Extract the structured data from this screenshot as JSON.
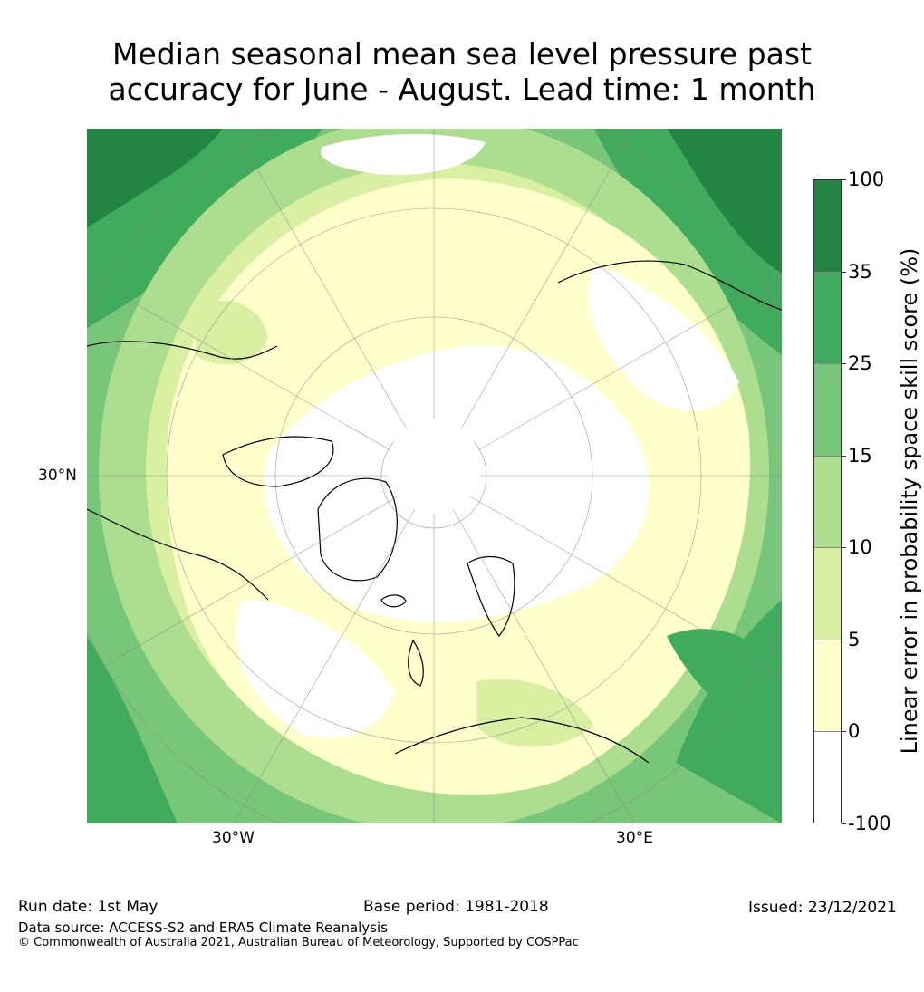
{
  "title_line1": "Median seasonal mean sea level pressure past",
  "title_line2": "accuracy for June - August. Lead time: 1 month",
  "map": {
    "lat_label": "30°N",
    "lon_left_label": "30°W",
    "lon_right_label": "30°E",
    "projection": "north-polar-stereographic",
    "land_outline_color": "#000000"
  },
  "colorbar": {
    "title": "Linear error in probability space skill score (%)",
    "tick_labels": [
      "100",
      "35",
      "25",
      "15",
      "10",
      "5",
      "0",
      "-100"
    ],
    "bins": [
      {
        "range": "35 to 100",
        "color": "#238443"
      },
      {
        "range": "25 to 35",
        "color": "#41ab5d"
      },
      {
        "range": "15 to 25",
        "color": "#78c679"
      },
      {
        "range": "10 to 15",
        "color": "#addd8e"
      },
      {
        "range": "5 to 10",
        "color": "#d9f0a3"
      },
      {
        "range": "0 to 5",
        "color": "#ffffcc"
      },
      {
        "range": "-100 to 0",
        "color": "#ffffff"
      }
    ]
  },
  "footer": {
    "run_date": "Run date: 1st May",
    "base_period": "Base period: 1981-2018",
    "issued": "Issued: 23/12/2021",
    "data_source": "Data source: ACCESS-S2 and ERA5 Climate Reanalysis",
    "copyright": "© Commonwealth of Australia 2021, Australian Bureau of Meteorology, Supported by COSPPac"
  }
}
